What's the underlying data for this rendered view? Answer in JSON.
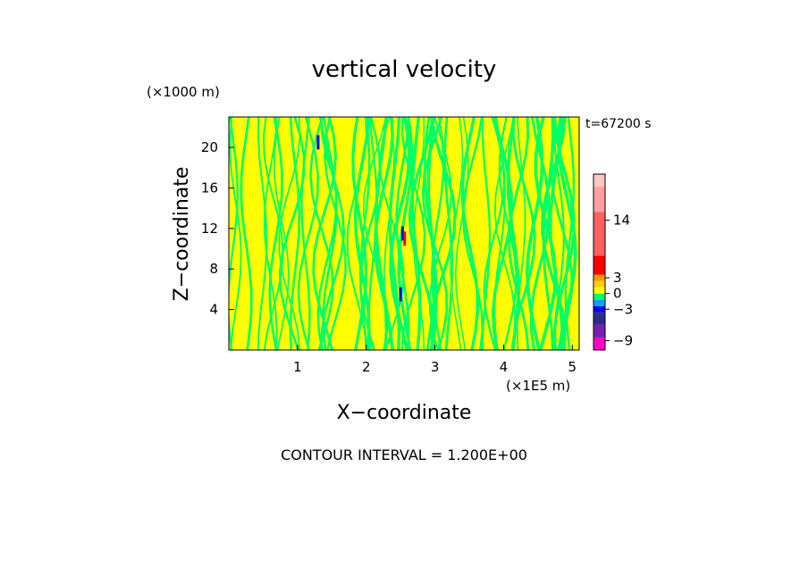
{
  "chart_data": {
    "type": "heatmap",
    "title": "vertical velocity",
    "xlabel": "X−coordinate",
    "ylabel": "Z−coordinate",
    "x_unit": "(×1E5 m)",
    "y_unit": "(×1000 m)",
    "time_label": "t=67200 s",
    "contour_note": "CONTOUR INTERVAL = 1.200E+00",
    "xlim": [
      0,
      5.1
    ],
    "ylim": [
      0,
      23
    ],
    "x_ticks": [
      {
        "value": 1,
        "label": "1"
      },
      {
        "value": 2,
        "label": "2"
      },
      {
        "value": 3,
        "label": "3"
      },
      {
        "value": 4,
        "label": "4"
      },
      {
        "value": 5,
        "label": "5"
      }
    ],
    "y_ticks": [
      {
        "value": 4,
        "label": "4"
      },
      {
        "value": 8,
        "label": "8"
      },
      {
        "value": 12,
        "label": "12"
      },
      {
        "value": 16,
        "label": "16"
      },
      {
        "value": 20,
        "label": "20"
      }
    ],
    "colorbar": {
      "levels": [
        {
          "from": -10.8,
          "to": -8.4,
          "color": "#ff00cc"
        },
        {
          "from": -8.4,
          "to": -6.0,
          "color": "#7a1fb0"
        },
        {
          "from": -6.0,
          "to": -3.6,
          "color": "#2d2d8c"
        },
        {
          "from": -3.6,
          "to": -2.4,
          "color": "#0000ff"
        },
        {
          "from": -2.4,
          "to": -1.2,
          "color": "#00a0ff"
        },
        {
          "from": -1.2,
          "to": 0.0,
          "color": "#00ff66"
        },
        {
          "from": 0.0,
          "to": 1.2,
          "color": "#ffff00"
        },
        {
          "from": 1.2,
          "to": 2.4,
          "color": "#ffd200"
        },
        {
          "from": 2.4,
          "to": 3.6,
          "color": "#ff9900"
        },
        {
          "from": 3.6,
          "to": 7.2,
          "color": "#ff0000"
        },
        {
          "from": 7.2,
          "to": 15.6,
          "color": "#ff6060"
        },
        {
          "from": 15.6,
          "to": 20.4,
          "color": "#ff9f9f"
        },
        {
          "from": 20.4,
          "to": 22.8,
          "color": "#ffc6c6"
        }
      ],
      "tick_labels": [
        {
          "value": 14,
          "label": "14"
        },
        {
          "value": 3,
          "label": "3"
        },
        {
          "value": 0,
          "label": "0"
        },
        {
          "value": -3,
          "label": "−3"
        },
        {
          "value": -9,
          "label": "−9"
        }
      ]
    },
    "field_colors": {
      "positive": "#ffff00",
      "negative": "#00ff66",
      "strong_negative": "#0000ff",
      "strong_positive": "#ff0000"
    }
  }
}
